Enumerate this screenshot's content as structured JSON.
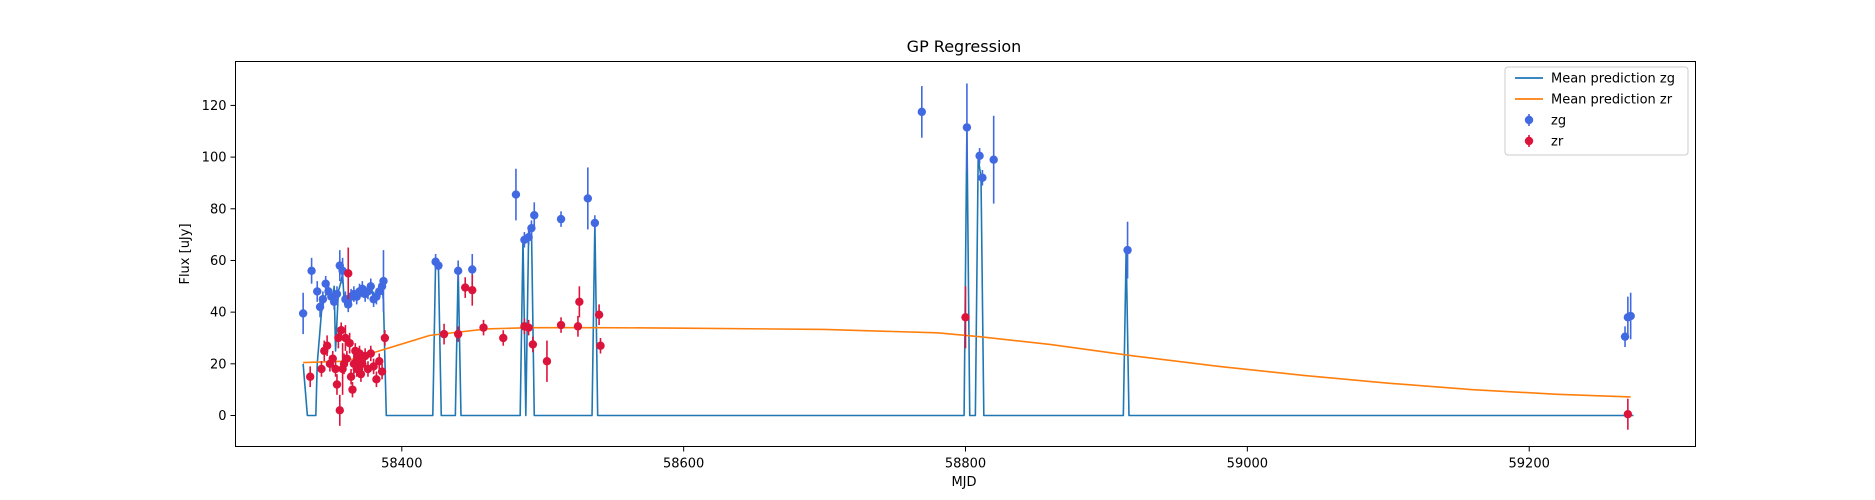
{
  "chart_data": {
    "type": "scatter",
    "title": "GP Regression",
    "xlabel": "MJD",
    "ylabel": "Flux [uJy]",
    "xlim": [
      58282,
      59318
    ],
    "ylim": [
      -12,
      137
    ],
    "xticks": [
      58400,
      58600,
      58800,
      59000,
      59200
    ],
    "yticks": [
      0,
      20,
      40,
      60,
      80,
      100,
      120
    ],
    "legend_position": "top-right",
    "lines": [
      {
        "name": "Mean prediction zg",
        "color": "#1f77b4",
        "x": [
          58330,
          58333,
          58335,
          58337,
          58338,
          58339,
          58340,
          58343,
          58345,
          58347,
          58349,
          58351,
          58352,
          58353,
          58355,
          58357,
          58358,
          58359,
          58360,
          58362,
          58364,
          58366,
          58368,
          58370,
          58372,
          58374,
          58376,
          58378,
          58380,
          58382,
          58384,
          58386,
          58387,
          58389,
          58422,
          58424,
          58426,
          58428,
          58430,
          58438,
          58440,
          58442,
          58444,
          58446,
          58448,
          58450,
          58452,
          58454,
          58484,
          58486,
          58488,
          58490,
          58492,
          58494,
          58496,
          58498,
          58535,
          58537,
          58539,
          58541,
          58797,
          58799,
          58801,
          58803,
          58807,
          58809,
          58811,
          58813,
          58912,
          58914,
          58916,
          59268,
          59270,
          59272,
          59274
        ],
        "y": [
          20,
          0,
          0,
          0,
          0,
          0,
          20,
          40,
          45,
          48,
          46,
          44,
          50,
          25,
          48,
          52,
          55,
          45,
          42,
          42,
          46,
          47,
          48,
          47,
          46,
          48,
          50,
          51,
          45,
          48,
          49,
          50,
          44,
          0,
          0,
          60,
          58,
          0,
          0,
          0,
          57,
          0,
          0,
          0,
          0,
          0,
          0,
          0,
          0,
          68,
          0,
          70,
          73,
          0,
          0,
          0,
          0,
          75,
          0,
          0,
          0,
          0,
          112,
          0,
          0,
          100,
          92,
          0,
          0,
          64,
          0,
          0,
          0,
          0,
          0
        ]
      },
      {
        "name": "Mean prediction zr",
        "color": "#ff7f0e",
        "x": [
          58330,
          58360,
          58390,
          58420,
          58460,
          58490,
          58540,
          58600,
          58700,
          58780,
          58810,
          58860,
          58920,
          58980,
          59040,
          59100,
          59160,
          59220,
          59272
        ],
        "y": [
          20.5,
          21,
          26,
          31,
          33.5,
          34,
          34,
          33.8,
          33.3,
          32,
          30.5,
          27.5,
          23,
          19,
          15.5,
          12.5,
          10,
          8.2,
          7.2
        ]
      }
    ],
    "series": [
      {
        "name": "zg",
        "color": "#4169e1",
        "x": [
          58330,
          58336,
          58340,
          58342,
          58344,
          58346,
          58348,
          58350,
          58352,
          58354,
          58356,
          58358,
          58360,
          58362,
          58364,
          58366,
          58368,
          58370,
          58372,
          58374,
          58376,
          58378,
          58380,
          58382,
          58384,
          58386,
          58387,
          58424,
          58426,
          58440,
          58450,
          58481,
          58487,
          58490,
          58492,
          58494,
          58513,
          58532,
          58537,
          58769,
          58801,
          58810,
          58812,
          58820,
          58915,
          59268,
          59270,
          59272
        ],
        "y": [
          39.5,
          56,
          48,
          42,
          45,
          51,
          48,
          46,
          44,
          47,
          58,
          56,
          45,
          43,
          46,
          47,
          46,
          48,
          49,
          47,
          48,
          50,
          45,
          46,
          48,
          50,
          52,
          59.5,
          58,
          56,
          56.5,
          85.5,
          68,
          69,
          72.5,
          77.5,
          76,
          84,
          74.5,
          117.5,
          111.5,
          100.5,
          92,
          99,
          64,
          30.5,
          38,
          38.5
        ],
        "err": [
          8,
          5,
          4,
          4,
          3,
          3,
          3,
          3,
          3,
          3,
          6,
          5,
          3,
          3,
          3,
          3,
          3,
          3,
          3,
          3,
          3,
          3,
          3,
          3,
          3,
          3,
          12,
          3,
          2,
          4,
          6,
          10,
          3,
          3,
          3,
          5,
          3,
          12,
          3,
          10,
          17,
          3,
          3,
          17,
          11,
          4,
          8,
          9
        ]
      },
      {
        "name": "zr",
        "color": "#dc143c",
        "x": [
          58335,
          58343,
          58345,
          58347,
          58349,
          58351,
          58353,
          58354,
          58355,
          58356,
          58357,
          58358,
          58359,
          58360,
          58361,
          58362,
          58363,
          58364,
          58365,
          58366,
          58367,
          58368,
          58369,
          58370,
          58371,
          58372,
          58374,
          58376,
          58378,
          58380,
          58382,
          58384,
          58386,
          58388,
          58430,
          58440,
          58445,
          58450,
          58458,
          58472,
          58487,
          58490,
          58493,
          58503,
          58513,
          58525,
          58526,
          58540,
          58541,
          58800,
          59270
        ],
        "y": [
          15,
          18,
          25,
          27,
          20,
          22,
          18,
          12,
          30,
          2,
          33,
          18,
          20,
          30,
          22,
          55,
          28,
          15,
          10,
          20,
          25,
          18,
          22,
          24,
          16,
          20,
          23,
          18,
          24,
          19,
          14,
          21,
          17,
          30,
          31.5,
          31.5,
          49.5,
          48.5,
          34,
          30,
          34.5,
          34,
          27.5,
          21,
          35,
          34.5,
          44,
          39,
          27,
          38,
          0.5
        ],
        "err": [
          4,
          3,
          4,
          4,
          3,
          3,
          3,
          4,
          4,
          6,
          3,
          10,
          4,
          5,
          3,
          10,
          4,
          3,
          3,
          4,
          3,
          3,
          4,
          3,
          3,
          3,
          3,
          3,
          3,
          3,
          3,
          3,
          3,
          3,
          4,
          3,
          4,
          6,
          3,
          3,
          3,
          3,
          3,
          8,
          3,
          4,
          6,
          4,
          3,
          12,
          6
        ]
      }
    ]
  }
}
